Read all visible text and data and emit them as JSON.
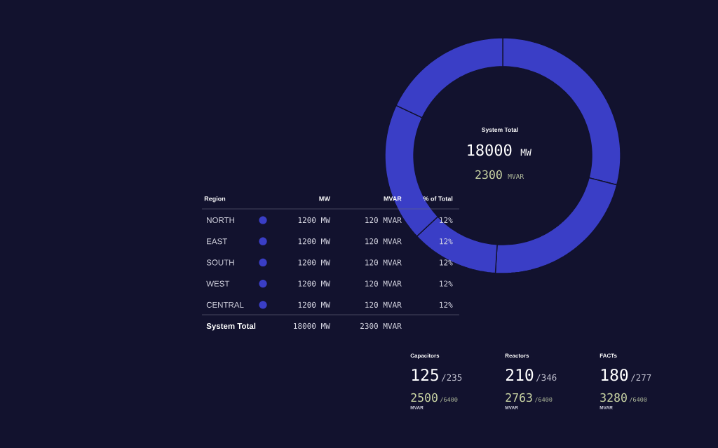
{
  "chart_data": [
    {
      "type": "donut",
      "categories": [
        null,
        null,
        null,
        null,
        null
      ],
      "values": [
        29,
        22,
        12,
        19,
        18
      ],
      "colors": [
        "#3a3ec6",
        "#3a3ec6",
        "#3a3ec6",
        "#3a3ec6",
        "#3a3ec6"
      ],
      "annotations": [
        "System Total",
        "18000",
        "MW",
        "2300",
        "MVAR"
      ]
    },
    {
      "type": "other",
      "categories": [
        "Region",
        "MW",
        "MVAR",
        "% of Total"
      ],
      "cell_labels": [
        [
          "NORTH",
          "1200 MW",
          "120 MVAR",
          "12%"
        ],
        [
          "EAST",
          "1200 MW",
          "120 MVAR",
          "12%"
        ],
        [
          "SOUTH",
          "1200 MW",
          "120 MVAR",
          "12%"
        ],
        [
          "WEST",
          "1200 MW",
          "120 MVAR",
          "12%"
        ],
        [
          "CENTRAL",
          "1200 MW",
          "120 MVAR",
          "12%"
        ],
        [
          "System Total",
          "18000 MW",
          "2300 MVAR",
          null
        ]
      ],
      "colors": [
        "#3a3ec6",
        "#3a3ec6",
        "#3a3ec6",
        "#3a3ec6",
        "#3a3ec6"
      ]
    },
    {
      "type": "other",
      "title": "Capacitors",
      "annotations": [
        "125",
        "/235",
        "2500",
        "/6400",
        "MVAR"
      ]
    },
    {
      "type": "other",
      "title": "Reactors",
      "annotations": [
        "210",
        "/346",
        "2763",
        "/6400",
        "MVAR"
      ]
    },
    {
      "type": "other",
      "title": "FACTs",
      "annotations": [
        "180",
        "/277",
        "3280",
        "/6400",
        "MVAR"
      ]
    }
  ]
}
